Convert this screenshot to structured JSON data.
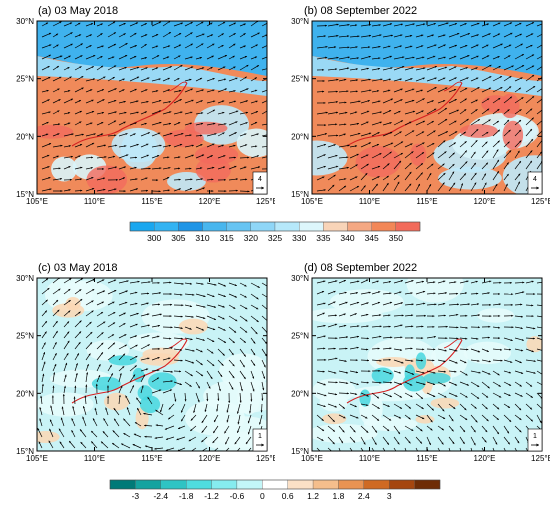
{
  "panels": [
    {
      "id": "a",
      "title": "(a) 03 May 2018",
      "ref_vector": "4"
    },
    {
      "id": "b",
      "title": "(b) 08 September 2022",
      "ref_vector": "4"
    },
    {
      "id": "c",
      "title": "(c) 03 May 2018",
      "ref_vector": "1"
    },
    {
      "id": "d",
      "title": "(d) 08 September 2022",
      "ref_vector": "1"
    }
  ],
  "axes": {
    "x_ticks": [
      "105°E",
      "110°E",
      "115°E",
      "120°E",
      "125°E"
    ],
    "y_ticks": [
      "30°N",
      "25°N",
      "20°N",
      "15°N"
    ],
    "lon_range": [
      105,
      125
    ],
    "lat_range": [
      15,
      30
    ]
  },
  "colorbar_top": {
    "labels": [
      "300",
      "305",
      "310",
      "315",
      "320",
      "325",
      "330",
      "335",
      "340",
      "345",
      "350"
    ],
    "colors": [
      "#1aa7ef",
      "#33b3f2",
      "#1f95e6",
      "#48b6ee",
      "#67c4f2",
      "#8fd6f7",
      "#b6e8fa",
      "#ddf6fb",
      "#f8d4b8",
      "#f4a883",
      "#f28757",
      "#f26b5b"
    ]
  },
  "colorbar_bottom": {
    "labels": [
      "-3",
      "-2.4",
      "-1.8",
      "-1.2",
      "-0.6",
      "0",
      "0.6",
      "1.2",
      "1.8",
      "2.4",
      "3"
    ],
    "colors": [
      "#007a78",
      "#14a3a0",
      "#2fc4c4",
      "#4fdcdf",
      "#86ecef",
      "#c3f6f8",
      "#ffffff",
      "#fbe0c6",
      "#f5be8c",
      "#e99352",
      "#cf6a23",
      "#a5460f",
      "#6e2c06"
    ]
  },
  "colors": {
    "background": "#ffffff",
    "vector": "#000000",
    "coastline": "#d62020"
  }
}
